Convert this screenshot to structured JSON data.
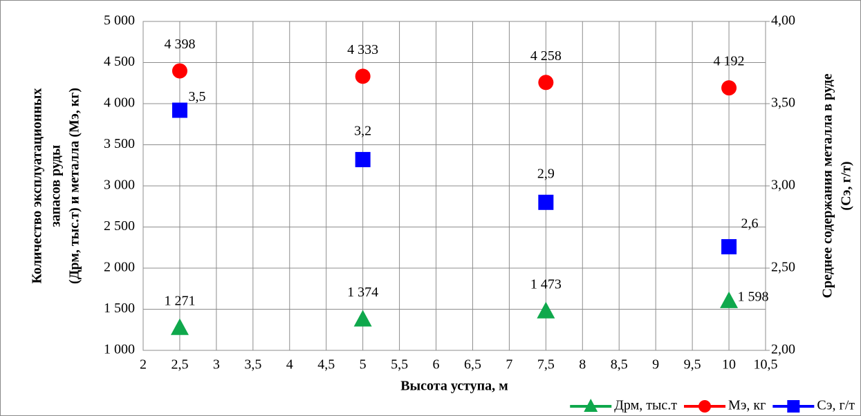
{
  "chart_data": {
    "type": "line",
    "x_label": "Высота уступа, м",
    "y_label": [
      "Количество эксплуатационных",
      "запасов руды",
      "(Дрм, тыс.т) и металла (Мэ, кг)"
    ],
    "y2_label": [
      "Среднее содержания металла в руде",
      "(Сэ, г/т)"
    ],
    "x": [
      2.5,
      5,
      7.5,
      10
    ],
    "xlim": [
      2,
      10.5
    ],
    "xticks": [
      2,
      {
        "value": 2.5,
        "label": "2,5"
      },
      3,
      {
        "value": 3.5,
        "label": "3,5"
      },
      4,
      {
        "value": 4.5,
        "label": "4,5"
      },
      5,
      {
        "value": 5.5,
        "label": "5,5"
      },
      6,
      {
        "value": 6.5,
        "label": "6,5"
      },
      7,
      {
        "value": 7.5,
        "label": "7,5"
      },
      8,
      {
        "value": 8.5,
        "label": "8,5"
      },
      9,
      {
        "value": 9.5,
        "label": "9,5"
      },
      10,
      {
        "value": 10.5,
        "label": "10,5"
      }
    ],
    "ylim": [
      1000,
      5000
    ],
    "yticks": [
      {
        "value": 1000,
        "label": "1 000"
      },
      {
        "value": 1500,
        "label": "1 500"
      },
      {
        "value": 2000,
        "label": "2 000"
      },
      {
        "value": 2500,
        "label": "2 500"
      },
      {
        "value": 3000,
        "label": "3 000"
      },
      {
        "value": 3500,
        "label": "3 500"
      },
      {
        "value": 4000,
        "label": "4 000"
      },
      {
        "value": 4500,
        "label": "4 500"
      },
      {
        "value": 5000,
        "label": "5 000"
      }
    ],
    "y2lim": [
      2,
      4
    ],
    "y2ticks": [
      {
        "value": 2,
        "label": "2,00"
      },
      {
        "value": 2.5,
        "label": "2,50"
      },
      {
        "value": 3,
        "label": "3,00"
      },
      {
        "value": 3.5,
        "label": "3,50"
      },
      {
        "value": 4,
        "label": "4,00"
      }
    ],
    "grid": true,
    "legend": "bottom-right",
    "series": [
      {
        "name": "Дрм, тыс.т",
        "color": "#0fa84c",
        "marker": "triangle",
        "values": [
          1271,
          1374,
          1473,
          1598
        ],
        "value_labels": [
          "1 271",
          "1 374",
          "1 473",
          "1 598"
        ]
      },
      {
        "name": "Мэ, кг",
        "color": "#ff0000",
        "marker": "circle",
        "values": [
          4398,
          4333,
          4258,
          4192
        ],
        "value_labels": [
          "4 398",
          "4 333",
          "4 258",
          "4 192"
        ]
      },
      {
        "name": "Сэ, г/т",
        "color": "#0000ff",
        "marker": "square",
        "axis": "y2",
        "values": [
          3.46,
          3.16,
          2.9,
          2.63
        ],
        "value_labels": [
          "3,5",
          "3,2",
          "2,9",
          "2,6"
        ]
      }
    ]
  }
}
